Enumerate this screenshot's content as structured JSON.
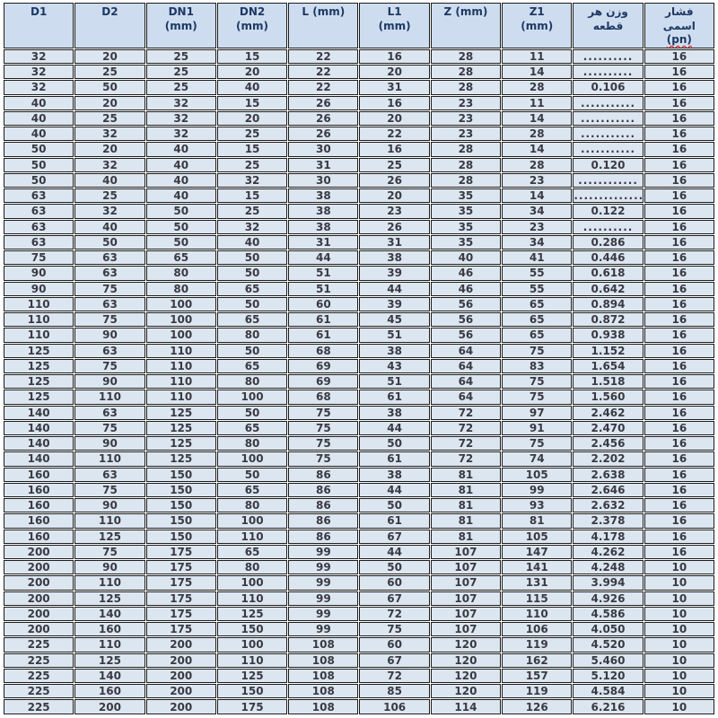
{
  "colors": {
    "cell_bg": "#dce6f1",
    "header_bg": "#cdddef",
    "header_text": "#1f3864",
    "body_text": "#3a3a42",
    "border": "#1c1c1c",
    "spell_underline": "#ff0000",
    "page_bg": "#ffffff"
  },
  "table": {
    "headers": [
      {
        "id": "d1",
        "lines": [
          "D1"
        ]
      },
      {
        "id": "d2",
        "lines": [
          "D2"
        ]
      },
      {
        "id": "dn1",
        "lines": [
          "DN1",
          "(mm)"
        ]
      },
      {
        "id": "dn2",
        "lines": [
          "DN2",
          "(mm)"
        ]
      },
      {
        "id": "l",
        "lines": [
          "L (mm)"
        ]
      },
      {
        "id": "l1",
        "lines": [
          "L1",
          "(mm)"
        ]
      },
      {
        "id": "z",
        "lines": [
          "Z (mm)"
        ]
      },
      {
        "id": "z1",
        "lines": [
          "Z1",
          "(mm)"
        ]
      },
      {
        "id": "weight",
        "lines": [
          "وزن هر",
          "قطعه"
        ],
        "rtl": true
      },
      {
        "id": "pressure",
        "lines": [
          "فشار",
          "اسمی",
          "(pn)"
        ],
        "rtl": true,
        "wavy_line_index": 2
      }
    ],
    "rows": [
      [
        "32",
        "20",
        "25",
        "15",
        "22",
        "16",
        "28",
        "11",
        "..........",
        "16"
      ],
      [
        "32",
        "25",
        "25",
        "20",
        "22",
        "20",
        "28",
        "14",
        "..........",
        "16"
      ],
      [
        "32",
        "50",
        "25",
        "40",
        "22",
        "31",
        "28",
        "28",
        "0.106",
        "16"
      ],
      [
        "40",
        "20",
        "32",
        "15",
        "26",
        "16",
        "23",
        "11",
        "...........",
        "16"
      ],
      [
        "40",
        "25",
        "32",
        "20",
        "26",
        "20",
        "23",
        "14",
        "...........",
        "16"
      ],
      [
        "40",
        "32",
        "32",
        "25",
        "26",
        "22",
        "23",
        "28",
        "...........",
        "16"
      ],
      [
        "50",
        "20",
        "40",
        "15",
        "30",
        "16",
        "28",
        "14",
        "...........",
        "16"
      ],
      [
        "50",
        "32",
        "40",
        "25",
        "31",
        "25",
        "28",
        "28",
        "0.120",
        "16"
      ],
      [
        "50",
        "40",
        "40",
        "32",
        "30",
        "26",
        "28",
        "23",
        "............",
        "16"
      ],
      [
        "63",
        "25",
        "40",
        "15",
        "38",
        "20",
        "35",
        "14",
        "..............",
        "16"
      ],
      [
        "63",
        "32",
        "50",
        "25",
        "38",
        "23",
        "35",
        "34",
        "0.122",
        "16"
      ],
      [
        "63",
        "40",
        "50",
        "32",
        "38",
        "26",
        "35",
        "23",
        "..........",
        "16"
      ],
      [
        "63",
        "50",
        "50",
        "40",
        "31",
        "31",
        "35",
        "34",
        "0.286",
        "16"
      ],
      [
        "75",
        "63",
        "65",
        "50",
        "44",
        "38",
        "40",
        "41",
        "0.446",
        "16"
      ],
      [
        "90",
        "63",
        "80",
        "50",
        "51",
        "39",
        "46",
        "55",
        "0.618",
        "16"
      ],
      [
        "90",
        "75",
        "80",
        "65",
        "51",
        "44",
        "46",
        "55",
        "0.642",
        "16"
      ],
      [
        "110",
        "63",
        "100",
        "50",
        "60",
        "39",
        "56",
        "65",
        "0.894",
        "16"
      ],
      [
        "110",
        "75",
        "100",
        "65",
        "61",
        "45",
        "56",
        "65",
        "0.872",
        "16"
      ],
      [
        "110",
        "90",
        "100",
        "80",
        "61",
        "51",
        "56",
        "65",
        "0.938",
        "16"
      ],
      [
        "125",
        "63",
        "110",
        "50",
        "68",
        "38",
        "64",
        "75",
        "1.152",
        "16"
      ],
      [
        "125",
        "75",
        "110",
        "65",
        "69",
        "43",
        "64",
        "83",
        "1.654",
        "16"
      ],
      [
        "125",
        "90",
        "110",
        "80",
        "69",
        "51",
        "64",
        "75",
        "1.518",
        "16"
      ],
      [
        "125",
        "110",
        "110",
        "100",
        "68",
        "61",
        "64",
        "75",
        "1.560",
        "16"
      ],
      [
        "140",
        "63",
        "125",
        "50",
        "75",
        "38",
        "72",
        "97",
        "2.462",
        "16"
      ],
      [
        "140",
        "75",
        "125",
        "65",
        "75",
        "44",
        "72",
        "91",
        "2.470",
        "16"
      ],
      [
        "140",
        "90",
        "125",
        "80",
        "75",
        "50",
        "72",
        "75",
        "2.456",
        "16"
      ],
      [
        "140",
        "110",
        "125",
        "100",
        "75",
        "61",
        "72",
        "74",
        "2.202",
        "16"
      ],
      [
        "160",
        "63",
        "150",
        "50",
        "86",
        "38",
        "81",
        "105",
        "2.638",
        "16"
      ],
      [
        "160",
        "75",
        "150",
        "65",
        "86",
        "44",
        "81",
        "99",
        "2.646",
        "16"
      ],
      [
        "160",
        "90",
        "150",
        "80",
        "86",
        "50",
        "81",
        "93",
        "2.632",
        "16"
      ],
      [
        "160",
        "110",
        "150",
        "100",
        "86",
        "61",
        "81",
        "81",
        "2.378",
        "16"
      ],
      [
        "160",
        "125",
        "150",
        "110",
        "86",
        "67",
        "81",
        "105",
        "4.178",
        "16"
      ],
      [
        "200",
        "75",
        "175",
        "65",
        "99",
        "44",
        "107",
        "147",
        "4.262",
        "16"
      ],
      [
        "200",
        "90",
        "175",
        "80",
        "99",
        "50",
        "107",
        "141",
        "4.248",
        "10"
      ],
      [
        "200",
        "110",
        "175",
        "100",
        "99",
        "60",
        "107",
        "131",
        "3.994",
        "10"
      ],
      [
        "200",
        "125",
        "175",
        "110",
        "99",
        "67",
        "107",
        "115",
        "4.926",
        "10"
      ],
      [
        "200",
        "140",
        "175",
        "125",
        "99",
        "72",
        "107",
        "110",
        "4.586",
        "10"
      ],
      [
        "200",
        "160",
        "175",
        "150",
        "99",
        "75",
        "107",
        "106",
        "4.050",
        "10"
      ],
      [
        "225",
        "110",
        "200",
        "100",
        "108",
        "60",
        "120",
        "119",
        "4.520",
        "10"
      ],
      [
        "225",
        "125",
        "200",
        "110",
        "108",
        "67",
        "120",
        "162",
        "5.460",
        "10"
      ],
      [
        "225",
        "140",
        "200",
        "125",
        "108",
        "72",
        "120",
        "157",
        "5.120",
        "10"
      ],
      [
        "225",
        "160",
        "200",
        "150",
        "108",
        "85",
        "120",
        "119",
        "4.584",
        "10"
      ],
      [
        "225",
        "200",
        "200",
        "175",
        "108",
        "106",
        "114",
        "126",
        "6.216",
        "10"
      ]
    ]
  }
}
